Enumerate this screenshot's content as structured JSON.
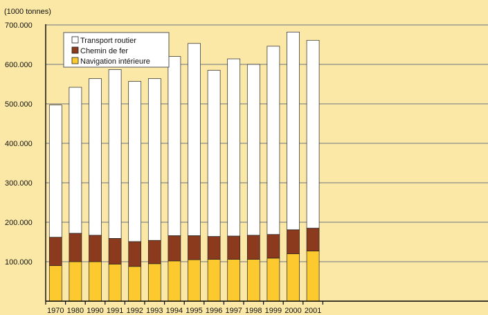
{
  "chart_data": {
    "type": "bar",
    "stacked": true,
    "unit_label": "(1000 tonnes)",
    "title": "",
    "xlabel": "",
    "ylabel": "",
    "ylim": [
      0,
      700000
    ],
    "y_ticks": [
      "100.000",
      "200.000",
      "300.000",
      "400.000",
      "500.000",
      "600.000",
      "700.000"
    ],
    "y_tick_values": [
      100000,
      200000,
      300000,
      400000,
      500000,
      600000,
      700000
    ],
    "grid": true,
    "legend_position": "top-left",
    "categories": [
      "1970",
      "1980",
      "1990",
      "1991",
      "1992",
      "1993",
      "1994",
      "1995",
      "1996",
      "1997",
      "1998",
      "1999",
      "2000",
      "2001"
    ],
    "series": [
      {
        "name": "Navigation intérieure",
        "color": "#fcc92e",
        "values": [
          90000,
          100000,
          100000,
          94000,
          88000,
          95000,
          102000,
          105000,
          106000,
          106000,
          106000,
          109000,
          120000,
          127000
        ]
      },
      {
        "name": "Chemin de fer",
        "color": "#8b3a1e",
        "values": [
          72000,
          72000,
          67000,
          65000,
          63000,
          59000,
          64000,
          61000,
          58000,
          59000,
          61000,
          60000,
          61000,
          58000
        ]
      },
      {
        "name": "Transport routier",
        "color": "#ffffff",
        "values": [
          335000,
          370000,
          397000,
          428000,
          406000,
          410000,
          454000,
          487000,
          421000,
          449000,
          433000,
          477000,
          501000,
          476000
        ]
      }
    ],
    "legend_order": [
      "Transport routier",
      "Chemin de fer",
      "Navigation intérieure"
    ]
  }
}
